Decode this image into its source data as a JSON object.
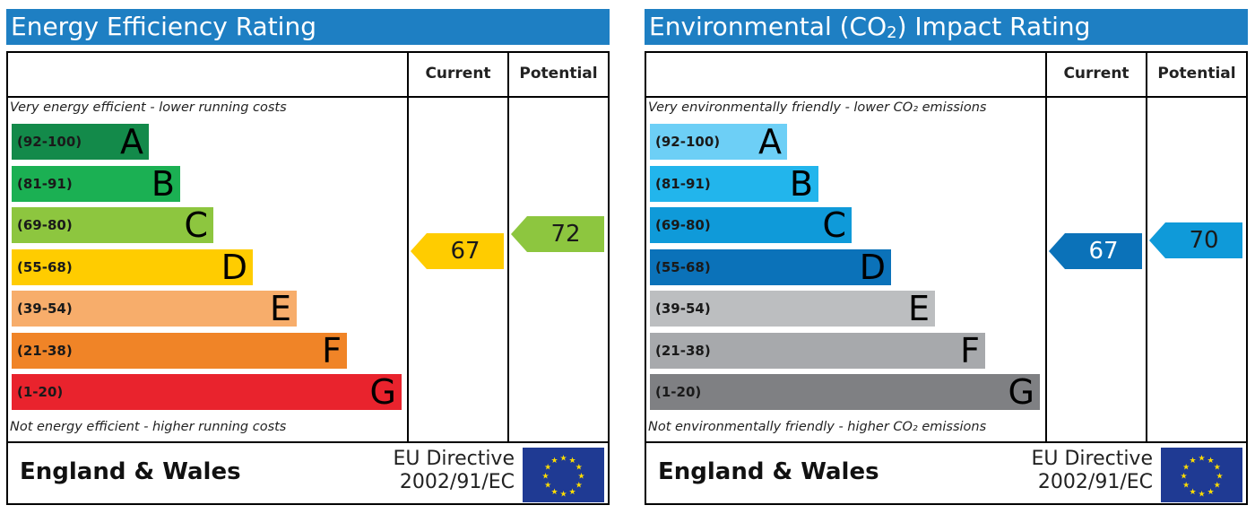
{
  "energy": {
    "title": "Energy Efficiency Rating",
    "current_label": "Current",
    "potential_label": "Potential",
    "top_caption": "Very energy efficient - lower running costs",
    "bottom_caption": "Not energy efficient - higher running costs",
    "bands": [
      {
        "range": "(92-100)",
        "letter": "A",
        "color": "#138a4a"
      },
      {
        "range": "(81-91)",
        "letter": "B",
        "color": "#1bb053"
      },
      {
        "range": "(69-80)",
        "letter": "C",
        "color": "#8dc63f"
      },
      {
        "range": "(55-68)",
        "letter": "D",
        "color": "#ffcc00"
      },
      {
        "range": "(39-54)",
        "letter": "E",
        "color": "#f7ad6b"
      },
      {
        "range": "(21-38)",
        "letter": "F",
        "color": "#f08427"
      },
      {
        "range": "(1-20)",
        "letter": "G",
        "color": "#e9232d"
      }
    ],
    "current": {
      "value": "67",
      "color": "#ffcc00"
    },
    "potential": {
      "value": "72",
      "color": "#8dc63f"
    },
    "country": "England & Wales",
    "directive_line1": "EU Directive",
    "directive_line2": "2002/91/EC"
  },
  "environment": {
    "title": "Environmental (CO",
    "title_sub": "2",
    "title_end": ") Impact Rating",
    "current_label": "Current",
    "potential_label": "Potential",
    "top_caption": "Very environmentally friendly - lower CO₂ emissions",
    "bottom_caption": "Not environmentally friendly - higher CO₂ emissions",
    "bands": [
      {
        "range": "(92-100)",
        "letter": "A",
        "color": "#6dcff6"
      },
      {
        "range": "(81-91)",
        "letter": "B",
        "color": "#22b5ec"
      },
      {
        "range": "(69-80)",
        "letter": "C",
        "color": "#0f9ad9"
      },
      {
        "range": "(55-68)",
        "letter": "D",
        "color": "#0b72b9"
      },
      {
        "range": "(39-54)",
        "letter": "E",
        "color": "#bcbec0"
      },
      {
        "range": "(21-38)",
        "letter": "F",
        "color": "#a7a9ac"
      },
      {
        "range": "(1-20)",
        "letter": "G",
        "color": "#7f8083"
      }
    ],
    "current": {
      "value": "67",
      "color": "#0b72b9"
    },
    "potential": {
      "value": "70",
      "color": "#0f9ad9"
    },
    "country": "England & Wales",
    "directive_line1": "EU Directive",
    "directive_line2": "2002/91/EC"
  },
  "icons": {
    "eu_flag": "eu-flag-icon"
  }
}
